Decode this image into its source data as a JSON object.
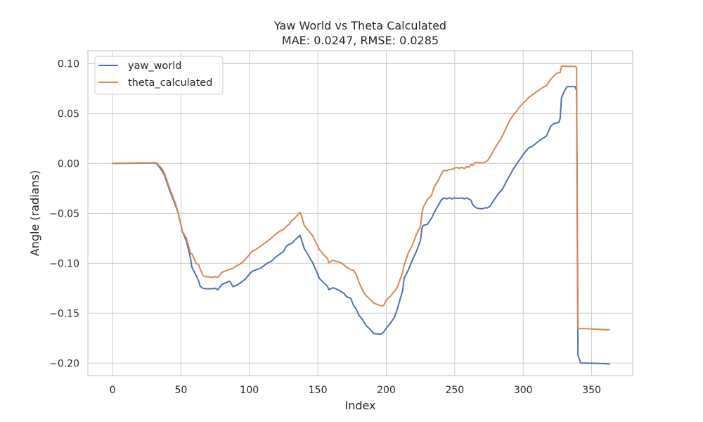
{
  "chart_data": {
    "type": "line",
    "title": "Yaw World vs Theta Calculated",
    "subtitle": "MAE: 0.0247, RMSE: 0.0285",
    "xlabel": "Index",
    "ylabel": "Angle (radians)",
    "xlim": [
      -18,
      380
    ],
    "ylim": [
      -0.2125,
      0.113
    ],
    "xticks": [
      0,
      50,
      100,
      150,
      200,
      250,
      300,
      350
    ],
    "yticks": [
      0.1,
      0.05,
      0.0,
      -0.05,
      -0.1,
      -0.15,
      -0.2
    ],
    "xtick_labels": [
      "0",
      "50",
      "100",
      "150",
      "200",
      "250",
      "300",
      "350"
    ],
    "ytick_labels": [
      "0.10",
      "0.05",
      "0.00",
      "−0.05",
      "−0.10",
      "−0.15",
      "−0.20"
    ],
    "grid": true,
    "legend_position": "top-left",
    "series": [
      {
        "name": "yaw_world",
        "color": "#4c72b0",
        "points": [
          [
            0,
            0.0
          ],
          [
            32,
            0.0005
          ],
          [
            36,
            -0.007
          ],
          [
            38,
            -0.012
          ],
          [
            42,
            -0.028
          ],
          [
            46,
            -0.042
          ],
          [
            48,
            -0.05
          ],
          [
            51,
            -0.068
          ],
          [
            54,
            -0.078
          ],
          [
            57,
            -0.095
          ],
          [
            58,
            -0.104
          ],
          [
            61,
            -0.112
          ],
          [
            63,
            -0.118
          ],
          [
            64,
            -0.123
          ],
          [
            66,
            -0.125
          ],
          [
            68,
            -0.1255
          ],
          [
            73,
            -0.1255
          ],
          [
            75,
            -0.125
          ],
          [
            77,
            -0.1265
          ],
          [
            80,
            -0.121
          ],
          [
            83,
            -0.1195
          ],
          [
            85,
            -0.118
          ],
          [
            86,
            -0.1185
          ],
          [
            88,
            -0.1235
          ],
          [
            90,
            -0.1225
          ],
          [
            93,
            -0.12
          ],
          [
            95,
            -0.118
          ],
          [
            97,
            -0.116
          ],
          [
            100,
            -0.111
          ],
          [
            102,
            -0.108
          ],
          [
            105,
            -0.1065
          ],
          [
            108,
            -0.105
          ],
          [
            110,
            -0.103
          ],
          [
            113,
            -0.1
          ],
          [
            116,
            -0.098
          ],
          [
            119,
            -0.094
          ],
          [
            122,
            -0.091
          ],
          [
            125,
            -0.088
          ],
          [
            127,
            -0.083
          ],
          [
            129,
            -0.081
          ],
          [
            131,
            -0.08
          ],
          [
            133,
            -0.077
          ],
          [
            137,
            -0.072
          ],
          [
            138,
            -0.076
          ],
          [
            140,
            -0.085
          ],
          [
            143,
            -0.092
          ],
          [
            146,
            -0.099
          ],
          [
            150,
            -0.111
          ],
          [
            151,
            -0.115
          ],
          [
            154,
            -0.119
          ],
          [
            157,
            -0.123
          ],
          [
            158,
            -0.1265
          ],
          [
            161,
            -0.1245
          ],
          [
            163,
            -0.1255
          ],
          [
            166,
            -0.1275
          ],
          [
            169,
            -0.13
          ],
          [
            171,
            -0.1335
          ],
          [
            174,
            -0.135
          ],
          [
            176,
            -0.142
          ],
          [
            178,
            -0.146
          ],
          [
            180,
            -0.152
          ],
          [
            183,
            -0.157
          ],
          [
            185,
            -0.162
          ],
          [
            188,
            -0.166
          ],
          [
            191,
            -0.1705
          ],
          [
            196,
            -0.171
          ],
          [
            198,
            -0.169
          ],
          [
            200,
            -0.165
          ],
          [
            203,
            -0.16
          ],
          [
            206,
            -0.154
          ],
          [
            208,
            -0.146
          ],
          [
            212,
            -0.127
          ],
          [
            213,
            -0.115
          ],
          [
            216,
            -0.107
          ],
          [
            219,
            -0.097
          ],
          [
            222,
            -0.088
          ],
          [
            225,
            -0.077
          ],
          [
            226,
            -0.065
          ],
          [
            227,
            -0.062
          ],
          [
            230,
            -0.061
          ],
          [
            233,
            -0.055
          ],
          [
            235,
            -0.049
          ],
          [
            238,
            -0.042
          ],
          [
            240,
            -0.037
          ],
          [
            242,
            -0.0345
          ],
          [
            244,
            -0.0355
          ],
          [
            246,
            -0.0345
          ],
          [
            248,
            -0.0355
          ],
          [
            250,
            -0.0345
          ],
          [
            252,
            -0.035
          ],
          [
            253,
            -0.035
          ],
          [
            255,
            -0.0345
          ],
          [
            257,
            -0.0355
          ],
          [
            259,
            -0.0345
          ],
          [
            260,
            -0.0355
          ],
          [
            262,
            -0.037
          ],
          [
            263,
            -0.041
          ],
          [
            265,
            -0.044
          ],
          [
            267,
            -0.045
          ],
          [
            270,
            -0.0455
          ],
          [
            272,
            -0.0445
          ],
          [
            274,
            -0.0445
          ],
          [
            276,
            -0.0425
          ],
          [
            278,
            -0.038
          ],
          [
            281,
            -0.032
          ],
          [
            283,
            -0.0285
          ],
          [
            285,
            -0.0255
          ],
          [
            287,
            -0.02
          ],
          [
            289,
            -0.015
          ],
          [
            291,
            -0.01
          ],
          [
            293,
            -0.005
          ],
          [
            295,
            -0.001
          ],
          [
            297,
            0.003
          ],
          [
            299,
            0.007
          ],
          [
            302,
            0.0125
          ],
          [
            304,
            0.0155
          ],
          [
            307,
            0.0175
          ],
          [
            310,
            0.021
          ],
          [
            313,
            0.024
          ],
          [
            317,
            0.0275
          ],
          [
            318,
            0.0305
          ],
          [
            320,
            0.037
          ],
          [
            322,
            0.0395
          ],
          [
            324,
            0.0405
          ],
          [
            326,
            0.041
          ],
          [
            327,
            0.045
          ],
          [
            328,
            0.066
          ],
          [
            330,
            0.072
          ],
          [
            332,
            0.077
          ],
          [
            334,
            0.077
          ],
          [
            336,
            0.077
          ],
          [
            338,
            0.077
          ],
          [
            339,
            0.073
          ],
          [
            340,
            -0.192
          ],
          [
            342,
            -0.2
          ],
          [
            345,
            -0.2
          ],
          [
            360,
            -0.2005
          ],
          [
            363,
            -0.201
          ]
        ]
      },
      {
        "name": "theta_calculated",
        "color": "#dd8452",
        "points": [
          [
            0,
            0.0
          ],
          [
            32,
            0.0008
          ],
          [
            36,
            -0.005
          ],
          [
            38,
            -0.01
          ],
          [
            42,
            -0.026
          ],
          [
            46,
            -0.04
          ],
          [
            48,
            -0.05
          ],
          [
            51,
            -0.068
          ],
          [
            54,
            -0.075
          ],
          [
            57,
            -0.09
          ],
          [
            58,
            -0.0905
          ],
          [
            61,
            -0.1
          ],
          [
            63,
            -0.1015
          ],
          [
            64,
            -0.1055
          ],
          [
            66,
            -0.112
          ],
          [
            68,
            -0.1135
          ],
          [
            73,
            -0.114
          ],
          [
            75,
            -0.1135
          ],
          [
            77,
            -0.114
          ],
          [
            80,
            -0.109
          ],
          [
            83,
            -0.1075
          ],
          [
            85,
            -0.106
          ],
          [
            86,
            -0.106
          ],
          [
            88,
            -0.105
          ],
          [
            90,
            -0.103
          ],
          [
            93,
            -0.101
          ],
          [
            95,
            -0.099
          ],
          [
            97,
            -0.096
          ],
          [
            100,
            -0.0915
          ],
          [
            102,
            -0.088
          ],
          [
            105,
            -0.086
          ],
          [
            108,
            -0.083
          ],
          [
            110,
            -0.081
          ],
          [
            113,
            -0.078
          ],
          [
            116,
            -0.075
          ],
          [
            119,
            -0.071
          ],
          [
            122,
            -0.068
          ],
          [
            125,
            -0.066
          ],
          [
            127,
            -0.063
          ],
          [
            129,
            -0.061
          ],
          [
            131,
            -0.057
          ],
          [
            133,
            -0.055
          ],
          [
            137,
            -0.049
          ],
          [
            138,
            -0.052
          ],
          [
            140,
            -0.062
          ],
          [
            143,
            -0.067
          ],
          [
            146,
            -0.072
          ],
          [
            150,
            -0.083
          ],
          [
            151,
            -0.086
          ],
          [
            154,
            -0.091
          ],
          [
            157,
            -0.095
          ],
          [
            158,
            -0.0995
          ],
          [
            161,
            -0.097
          ],
          [
            163,
            -0.098
          ],
          [
            166,
            -0.099
          ],
          [
            169,
            -0.1015
          ],
          [
            171,
            -0.104
          ],
          [
            174,
            -0.1065
          ],
          [
            176,
            -0.107
          ],
          [
            178,
            -0.111
          ],
          [
            180,
            -0.119
          ],
          [
            183,
            -0.128
          ],
          [
            185,
            -0.132
          ],
          [
            188,
            -0.136
          ],
          [
            191,
            -0.14
          ],
          [
            196,
            -0.1425
          ],
          [
            198,
            -0.1425
          ],
          [
            200,
            -0.137
          ],
          [
            203,
            -0.133
          ],
          [
            206,
            -0.128
          ],
          [
            208,
            -0.124
          ],
          [
            212,
            -0.109
          ],
          [
            213,
            -0.102
          ],
          [
            216,
            -0.09
          ],
          [
            219,
            -0.082
          ],
          [
            222,
            -0.071
          ],
          [
            225,
            -0.063
          ],
          [
            226,
            -0.05
          ],
          [
            227,
            -0.044
          ],
          [
            230,
            -0.036
          ],
          [
            233,
            -0.032
          ],
          [
            235,
            -0.0235
          ],
          [
            238,
            -0.017
          ],
          [
            240,
            -0.011
          ],
          [
            242,
            -0.007
          ],
          [
            244,
            -0.0075
          ],
          [
            246,
            -0.006
          ],
          [
            248,
            -0.006
          ],
          [
            250,
            -0.0045
          ],
          [
            252,
            -0.004
          ],
          [
            253,
            -0.005
          ],
          [
            255,
            -0.004
          ],
          [
            257,
            -0.005
          ],
          [
            259,
            -0.003
          ],
          [
            260,
            -0.004
          ],
          [
            262,
            -0.001
          ],
          [
            263,
            -0.002
          ],
          [
            265,
            0.001
          ],
          [
            267,
            0.001
          ],
          [
            270,
            0.0005
          ],
          [
            272,
            0.001
          ],
          [
            274,
            0.003
          ],
          [
            276,
            0.007
          ],
          [
            278,
            0.012
          ],
          [
            281,
            0.019
          ],
          [
            283,
            0.023
          ],
          [
            285,
            0.028
          ],
          [
            287,
            0.034
          ],
          [
            289,
            0.04
          ],
          [
            291,
            0.045
          ],
          [
            293,
            0.049
          ],
          [
            295,
            0.052
          ],
          [
            297,
            0.056
          ],
          [
            299,
            0.059
          ],
          [
            302,
            0.063
          ],
          [
            304,
            0.066
          ],
          [
            307,
            0.069
          ],
          [
            310,
            0.072
          ],
          [
            313,
            0.075
          ],
          [
            317,
            0.078
          ],
          [
            318,
            0.08
          ],
          [
            320,
            0.084
          ],
          [
            322,
            0.087
          ],
          [
            324,
            0.09
          ],
          [
            326,
            0.091
          ],
          [
            327,
            0.091
          ],
          [
            328,
            0.0975
          ],
          [
            330,
            0.0975
          ],
          [
            332,
            0.0972
          ],
          [
            334,
            0.0972
          ],
          [
            336,
            0.0972
          ],
          [
            338,
            0.0972
          ],
          [
            339,
            0.096
          ],
          [
            340,
            -0.1655
          ],
          [
            342,
            -0.1655
          ],
          [
            345,
            -0.1655
          ],
          [
            360,
            -0.1665
          ],
          [
            363,
            -0.1665
          ]
        ]
      }
    ]
  }
}
